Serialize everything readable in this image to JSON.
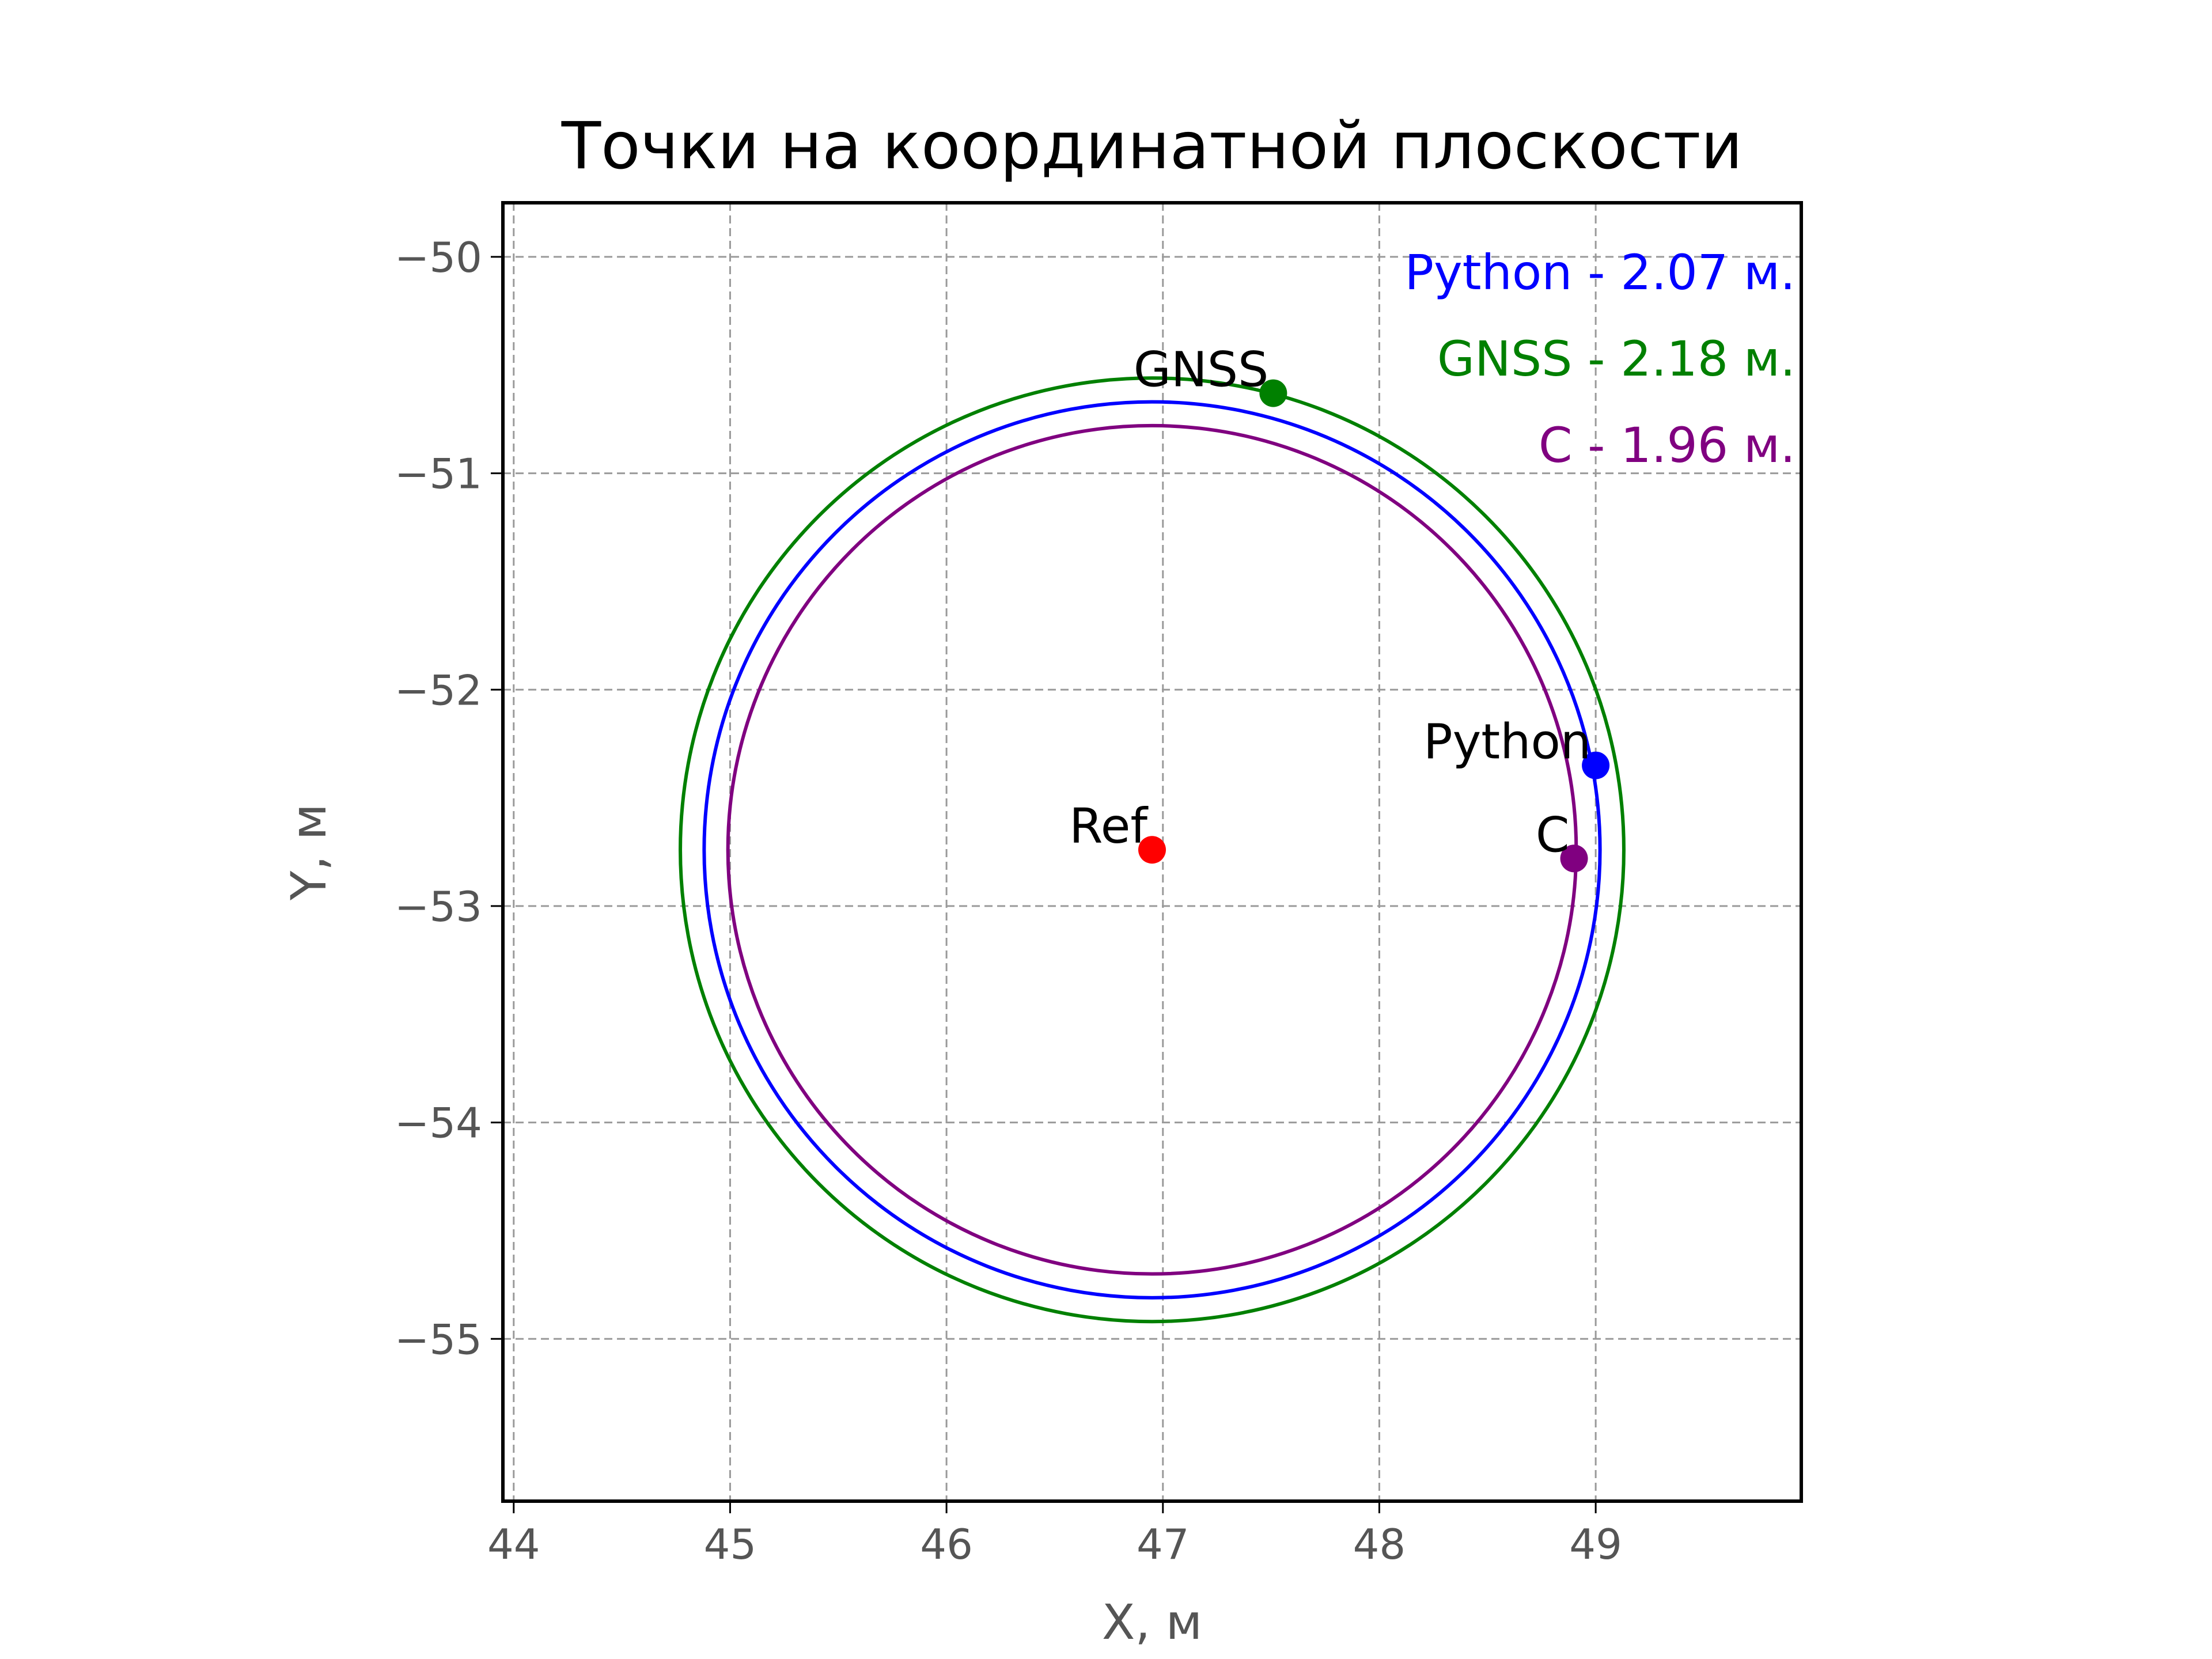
{
  "chart_data": {
    "type": "scatter",
    "title": "Точки на координатной плоскости",
    "xlabel": "X, м",
    "ylabel": "Y, м",
    "xlim": [
      43.95,
      49.95
    ],
    "ylim": [
      -55.75,
      -49.75
    ],
    "xticks": [
      44,
      45,
      46,
      47,
      48,
      49
    ],
    "yticks": [
      -50,
      -51,
      -52,
      -53,
      -54,
      -55
    ],
    "xtick_labels": [
      "44",
      "45",
      "46",
      "47",
      "48",
      "49"
    ],
    "ytick_labels": [
      "−50",
      "−51",
      "−52",
      "−53",
      "−54",
      "−55"
    ],
    "grid": true,
    "reference": {
      "label": "Ref",
      "x": 46.95,
      "y": -52.74,
      "color": "#ff0000"
    },
    "points": [
      {
        "label": "GNSS",
        "x": 47.51,
        "y": -50.63,
        "radius": 2.18,
        "color": "#008000"
      },
      {
        "label": "Python",
        "x": 49.0,
        "y": -52.35,
        "radius": 2.07,
        "color": "#0000ff"
      },
      {
        "label": "C",
        "x": 48.9,
        "y": -52.78,
        "radius": 1.96,
        "color": "#800080"
      }
    ],
    "legend": {
      "placement": "top-right",
      "entries": [
        {
          "text": "Python - 2.07 м.",
          "color": "#0000ff"
        },
        {
          "text": "GNSS - 2.18 м.",
          "color": "#008000"
        },
        {
          "text": "C - 1.96 м.",
          "color": "#800080"
        }
      ]
    }
  }
}
